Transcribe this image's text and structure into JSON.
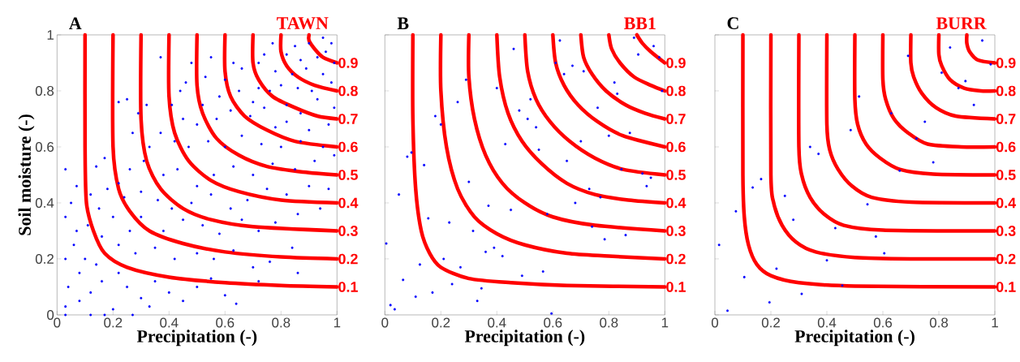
{
  "chart_data": [
    {
      "type": "scatter",
      "title": "A",
      "subtitle": "TAWN",
      "xlabel": "Precipitation (-)",
      "ylabel": "Soil moisture (-)",
      "xlim": [
        0,
        1
      ],
      "ylim": [
        0,
        1
      ],
      "xticks": [
        0,
        0.2,
        0.4,
        0.6,
        0.8,
        1
      ],
      "yticks": [
        0,
        0.2,
        0.4,
        0.6,
        0.8,
        1
      ],
      "series": [
        {
          "color": "#0000ff",
          "marker": "circle",
          "x": [
            0.95,
            0.98,
            0.9,
            0.96,
            0.93,
            0.99,
            0.87,
            0.85,
            0.82,
            0.89,
            0.77,
            0.74,
            0.72,
            0.78,
            0.84,
            0.95,
            0.98,
            0.91,
            0.86,
            0.8,
            0.76,
            0.72,
            0.7,
            0.74,
            0.82,
            0.87,
            0.93,
            0.99,
            0.97,
            0.9,
            0.82,
            0.78,
            0.69,
            0.66,
            0.63,
            0.6,
            0.65,
            0.58,
            0.55,
            0.53,
            0.48,
            0.46,
            0.44,
            0.62,
            0.57,
            0.52,
            0.5,
            0.45,
            0.41,
            0.37,
            0.32,
            0.29,
            0.25,
            0.22,
            0.27,
            0.33,
            0.37,
            0.42,
            0.47,
            0.54,
            0.6,
            0.66,
            0.73,
            0.8,
            0.87,
            0.95,
            0.99,
            0.92,
            0.85,
            0.77,
            0.7,
            0.63,
            0.56,
            0.5,
            0.43,
            0.38,
            0.31,
            0.26,
            0.22,
            0.17,
            0.14,
            0.18,
            0.24,
            0.3,
            0.36,
            0.41,
            0.48,
            0.55,
            0.62,
            0.68,
            0.75,
            0.82,
            0.9,
            0.97,
            0.94,
            0.86,
            0.78,
            0.72,
            0.66,
            0.58,
            0.52,
            0.45,
            0.38,
            0.3,
            0.26,
            0.2,
            0.15,
            0.12,
            0.07,
            0.03,
            0.05,
            0.03,
            0.07,
            0.11,
            0.16,
            0.22,
            0.28,
            0.35,
            0.42,
            0.5,
            0.56,
            0.63,
            0.7,
            0.76,
            0.84,
            0.86,
            0.72,
            0.64,
            0.6,
            0.55,
            0.5,
            0.45,
            0.4,
            0.35,
            0.3,
            0.25,
            0.2,
            0.22,
            0.16,
            0.12,
            0.08,
            0.04,
            0.03,
            0.06,
            0.1,
            0.14,
            0.03,
            0.08,
            0.17,
            0.27,
            0.33,
            0.12,
            0.03
          ],
          "values": [
            0.99,
            0.97,
            0.97,
            0.94,
            0.92,
            0.9,
            0.91,
            0.96,
            0.93,
            0.88,
            0.97,
            0.93,
            0.9,
            0.87,
            0.86,
            0.86,
            0.83,
            0.8,
            0.81,
            0.82,
            0.8,
            0.81,
            0.76,
            0.74,
            0.75,
            0.72,
            0.77,
            0.74,
            0.68,
            0.66,
            0.69,
            0.67,
            0.71,
            0.88,
            0.9,
            0.84,
            0.8,
            0.78,
            0.92,
            0.85,
            0.9,
            0.83,
            0.8,
            0.73,
            0.7,
            0.75,
            0.68,
            0.7,
            0.75,
            0.92,
            0.75,
            0.72,
            0.77,
            0.76,
            0.65,
            0.6,
            0.65,
            0.62,
            0.6,
            0.62,
            0.6,
            0.64,
            0.61,
            0.6,
            0.62,
            0.6,
            0.57,
            0.55,
            0.52,
            0.54,
            0.5,
            0.53,
            0.5,
            0.46,
            0.52,
            0.5,
            0.55,
            0.52,
            0.47,
            0.56,
            0.53,
            0.45,
            0.42,
            0.44,
            0.41,
            0.38,
            0.4,
            0.43,
            0.38,
            0.41,
            0.45,
            0.43,
            0.46,
            0.45,
            0.38,
            0.36,
            0.33,
            0.3,
            0.34,
            0.29,
            0.32,
            0.34,
            0.3,
            0.35,
            0.3,
            0.35,
            0.38,
            0.43,
            0.46,
            0.52,
            0.4,
            0.35,
            0.3,
            0.32,
            0.28,
            0.25,
            0.22,
            0.24,
            0.2,
            0.22,
            0.2,
            0.23,
            0.17,
            0.19,
            0.24,
            0.15,
            0.12,
            0.04,
            0.07,
            0.13,
            0.1,
            0.05,
            0.08,
            0.12,
            0.06,
            0.1,
            0.02,
            0.15,
            0.12,
            0.08,
            0.15,
            0.1,
            0.2,
            0.25,
            0.2,
            0.18,
            0.03,
            0.05,
            0.0,
            0.0,
            0.03,
            0.0,
            0.0
          ]
        },
        {
          "type": "line",
          "name": "0.1",
          "color": "#ff0000",
          "marker": "none",
          "line_style": "solid",
          "x": [
            0.1,
            0.1,
            0.105,
            0.13,
            0.17,
            0.25,
            0.4,
            0.6,
            0.8,
            1
          ],
          "values": [
            1,
            0.6,
            0.4,
            0.3,
            0.22,
            0.17,
            0.135,
            0.115,
            0.105,
            0.1
          ]
        },
        {
          "type": "line",
          "name": "0.2",
          "color": "#ff0000",
          "marker": "none",
          "line_style": "solid",
          "x": [
            0.2,
            0.2,
            0.22,
            0.26,
            0.33,
            0.45,
            0.6,
            0.8,
            1
          ],
          "values": [
            1,
            0.6,
            0.45,
            0.37,
            0.3,
            0.255,
            0.225,
            0.207,
            0.2
          ]
        },
        {
          "type": "line",
          "name": "0.3",
          "color": "#ff0000",
          "marker": "none",
          "line_style": "solid",
          "x": [
            0.3,
            0.3,
            0.32,
            0.37,
            0.45,
            0.55,
            0.7,
            1
          ],
          "values": [
            1,
            0.7,
            0.55,
            0.45,
            0.38,
            0.34,
            0.315,
            0.3
          ]
        },
        {
          "type": "line",
          "name": "0.4",
          "color": "#ff0000",
          "marker": "none",
          "line_style": "solid",
          "x": [
            0.4,
            0.4,
            0.42,
            0.47,
            0.55,
            0.65,
            0.8,
            1
          ],
          "values": [
            1,
            0.78,
            0.65,
            0.55,
            0.48,
            0.44,
            0.41,
            0.4
          ]
        },
        {
          "type": "line",
          "name": "0.5",
          "color": "#ff0000",
          "marker": "none",
          "line_style": "solid",
          "x": [
            0.5,
            0.5,
            0.52,
            0.57,
            0.65,
            0.75,
            0.88,
            1
          ],
          "values": [
            1,
            0.82,
            0.72,
            0.63,
            0.57,
            0.53,
            0.51,
            0.5
          ]
        },
        {
          "type": "line",
          "name": "0.6",
          "color": "#ff0000",
          "marker": "none",
          "line_style": "solid",
          "x": [
            0.6,
            0.6,
            0.62,
            0.67,
            0.75,
            0.85,
            1
          ],
          "values": [
            1,
            0.87,
            0.78,
            0.71,
            0.66,
            0.62,
            0.6
          ]
        },
        {
          "type": "line",
          "name": "0.7",
          "color": "#ff0000",
          "marker": "none",
          "line_style": "solid",
          "x": [
            0.7,
            0.7,
            0.72,
            0.77,
            0.85,
            0.93,
            1
          ],
          "values": [
            1,
            0.9,
            0.84,
            0.78,
            0.74,
            0.71,
            0.7
          ]
        },
        {
          "type": "line",
          "name": "0.8",
          "color": "#ff0000",
          "marker": "none",
          "line_style": "solid",
          "x": [
            0.8,
            0.8,
            0.82,
            0.86,
            0.92,
            1
          ],
          "values": [
            1,
            0.94,
            0.89,
            0.85,
            0.82,
            0.8
          ]
        },
        {
          "type": "line",
          "name": "0.9",
          "color": "#ff0000",
          "marker": "none",
          "line_style": "solid",
          "x": [
            0.9,
            0.9,
            0.92,
            0.95,
            1
          ],
          "values": [
            1,
            0.98,
            0.95,
            0.92,
            0.9
          ]
        }
      ]
    },
    {
      "type": "scatter",
      "title": "B",
      "subtitle": "BB1",
      "xlabel": "Precipitation (-)",
      "xlim": [
        0,
        1
      ],
      "ylim": [
        0,
        1
      ],
      "xticks": [
        0,
        0.2,
        0.4,
        0.6,
        0.8,
        1
      ],
      "yticks": [
        0,
        0.2,
        0.4,
        0.6,
        0.8,
        1
      ],
      "tick_labels": "x",
      "series": [
        {
          "color": "#0000ff",
          "marker": "circle",
          "x": [
            0.89,
            0.96,
            0.625,
            0.46,
            0.905,
            0.98,
            0.61,
            0.67,
            0.71,
            0.64,
            0.29,
            0.4,
            0.82,
            0.99,
            0.83,
            0.52,
            0.26,
            0.76,
            0.48,
            0.18,
            0.51,
            0.2,
            0.54,
            0.875,
            0.8,
            0.7,
            0.43,
            0.55,
            0.095,
            0.08,
            0.65,
            0.14,
            0.845,
            0.92,
            0.95,
            0.3,
            0.935,
            0.73,
            0.05,
            0.77,
            0.68,
            0.37,
            0.45,
            0.58,
            0.155,
            0.23,
            0.74,
            0.315,
            0.86,
            0.785,
            0.005,
            0.39,
            0.36,
            0.42,
            0.21,
            0.125,
            0.27,
            0.565,
            0.49,
            0.065,
            0.24,
            0.345,
            0.17,
            0.11,
            0.33,
            0.02,
            0.035,
            0.595
          ],
          "values": [
            0.99,
            0.96,
            0.98,
            0.95,
            0.93,
            0.92,
            0.9,
            0.89,
            0.87,
            0.86,
            0.84,
            0.81,
            0.83,
            0.8,
            0.79,
            0.77,
            0.76,
            0.74,
            0.73,
            0.71,
            0.7,
            0.68,
            0.67,
            0.65,
            0.64,
            0.62,
            0.61,
            0.59,
            0.58,
            0.565,
            0.55,
            0.535,
            0.52,
            0.505,
            0.49,
            0.475,
            0.46,
            0.45,
            0.43,
            0.42,
            0.4,
            0.39,
            0.375,
            0.36,
            0.345,
            0.33,
            0.315,
            0.3,
            0.285,
            0.27,
            0.255,
            0.24,
            0.225,
            0.21,
            0.2,
            0.18,
            0.17,
            0.155,
            0.14,
            0.125,
            0.11,
            0.095,
            0.08,
            0.065,
            0.05,
            0.035,
            0.02,
            0.005
          ]
        },
        {
          "type": "line",
          "name": "0.1",
          "color": "#ff0000",
          "marker": "none",
          "line_style": "solid",
          "x": [
            0.1,
            0.1,
            0.11,
            0.13,
            0.16,
            0.2,
            0.3,
            0.45,
            0.65,
            1
          ],
          "values": [
            1,
            0.7,
            0.45,
            0.3,
            0.22,
            0.17,
            0.13,
            0.115,
            0.105,
            0.1
          ]
        },
        {
          "type": "line",
          "name": "0.2",
          "color": "#ff0000",
          "marker": "none",
          "line_style": "solid",
          "x": [
            0.2,
            0.2,
            0.22,
            0.26,
            0.32,
            0.4,
            0.5,
            0.65,
            0.8,
            1
          ],
          "values": [
            1,
            0.8,
            0.6,
            0.45,
            0.35,
            0.29,
            0.25,
            0.22,
            0.21,
            0.2
          ]
        },
        {
          "type": "line",
          "name": "0.3",
          "color": "#ff0000",
          "marker": "none",
          "line_style": "solid",
          "x": [
            0.3,
            0.3,
            0.32,
            0.36,
            0.42,
            0.5,
            0.6,
            0.75,
            1
          ],
          "values": [
            1,
            0.85,
            0.7,
            0.57,
            0.47,
            0.4,
            0.35,
            0.32,
            0.3
          ]
        },
        {
          "type": "line",
          "name": "0.4",
          "color": "#ff0000",
          "marker": "none",
          "line_style": "solid",
          "x": [
            0.4,
            0.41,
            0.44,
            0.49,
            0.56,
            0.65,
            0.75,
            0.87,
            1
          ],
          "values": [
            1,
            0.85,
            0.72,
            0.62,
            0.54,
            0.47,
            0.43,
            0.41,
            0.4
          ]
        },
        {
          "type": "line",
          "name": "0.5",
          "color": "#ff0000",
          "marker": "none",
          "line_style": "solid",
          "x": [
            0.5,
            0.51,
            0.54,
            0.59,
            0.66,
            0.75,
            0.85,
            1
          ],
          "values": [
            1,
            0.87,
            0.77,
            0.69,
            0.62,
            0.56,
            0.52,
            0.5
          ]
        },
        {
          "type": "line",
          "name": "0.6",
          "color": "#ff0000",
          "marker": "none",
          "line_style": "solid",
          "x": [
            0.6,
            0.61,
            0.64,
            0.69,
            0.76,
            0.85,
            1
          ],
          "values": [
            1,
            0.9,
            0.82,
            0.75,
            0.69,
            0.64,
            0.6
          ]
        },
        {
          "type": "line",
          "name": "0.7",
          "color": "#ff0000",
          "marker": "none",
          "line_style": "solid",
          "x": [
            0.7,
            0.71,
            0.74,
            0.79,
            0.86,
            0.93,
            1
          ],
          "values": [
            1,
            0.92,
            0.86,
            0.8,
            0.75,
            0.72,
            0.7
          ]
        },
        {
          "type": "line",
          "name": "0.8",
          "color": "#ff0000",
          "marker": "none",
          "line_style": "solid",
          "x": [
            0.8,
            0.81,
            0.84,
            0.89,
            0.95,
            1
          ],
          "values": [
            1,
            0.95,
            0.9,
            0.85,
            0.82,
            0.8
          ]
        },
        {
          "type": "line",
          "name": "0.9",
          "color": "#ff0000",
          "marker": "none",
          "line_style": "solid",
          "x": [
            0.9,
            0.92,
            0.95,
            1
          ],
          "values": [
            1,
            0.97,
            0.94,
            0.9
          ]
        }
      ]
    },
    {
      "type": "scatter",
      "title": "C",
      "subtitle": "BURR",
      "xlabel": "Precipitation (-)",
      "xlim": [
        0,
        1
      ],
      "ylim": [
        0,
        1
      ],
      "xticks": [
        0,
        0.2,
        0.4,
        0.6,
        0.8,
        1
      ],
      "yticks": [
        0,
        0.2,
        0.4,
        0.6,
        0.8,
        1
      ],
      "tick_labels": "x",
      "series": [
        {
          "color": "#0000ff",
          "marker": "circle",
          "x": [
            0.955,
            0.84,
            0.69,
            0.985,
            0.81,
            0.895,
            0.87,
            0.515,
            0.925,
            0.63,
            0.75,
            0.485,
            0.72,
            0.34,
            0.37,
            0.78,
            0.66,
            0.165,
            0.135,
            0.25,
            0.545,
            0.075,
            0.28,
            0.43,
            0.575,
            0.015,
            0.605,
            0.4,
            0.22,
            0.105,
            0.455,
            0.31,
            0.195,
            0.045
          ],
          "values": [
            0.98,
            0.955,
            0.925,
            0.895,
            0.865,
            0.835,
            0.81,
            0.78,
            0.75,
            0.72,
            0.69,
            0.66,
            0.63,
            0.6,
            0.575,
            0.545,
            0.515,
            0.485,
            0.455,
            0.425,
            0.395,
            0.37,
            0.34,
            0.31,
            0.28,
            0.25,
            0.22,
            0.195,
            0.165,
            0.135,
            0.105,
            0.075,
            0.045,
            0.015
          ]
        },
        {
          "type": "line",
          "name": "0.1",
          "color": "#ff0000",
          "marker": "none",
          "line_style": "solid",
          "x": [
            0.1,
            0.1,
            0.105,
            0.12,
            0.15,
            0.2,
            0.3,
            0.5,
            1
          ],
          "values": [
            1,
            0.5,
            0.35,
            0.25,
            0.18,
            0.14,
            0.115,
            0.103,
            0.1
          ]
        },
        {
          "type": "line",
          "name": "0.2",
          "color": "#ff0000",
          "marker": "none",
          "line_style": "solid",
          "x": [
            0.2,
            0.2,
            0.21,
            0.24,
            0.29,
            0.36,
            0.5,
            0.7,
            1
          ],
          "values": [
            1,
            0.5,
            0.4,
            0.32,
            0.26,
            0.225,
            0.205,
            0.2,
            0.2
          ]
        },
        {
          "type": "line",
          "name": "0.3",
          "color": "#ff0000",
          "marker": "none",
          "line_style": "solid",
          "x": [
            0.3,
            0.3,
            0.31,
            0.34,
            0.39,
            0.46,
            0.6,
            1
          ],
          "values": [
            1,
            0.6,
            0.5,
            0.42,
            0.36,
            0.32,
            0.303,
            0.3
          ]
        },
        {
          "type": "line",
          "name": "0.4",
          "color": "#ff0000",
          "marker": "none",
          "line_style": "solid",
          "x": [
            0.4,
            0.4,
            0.41,
            0.44,
            0.49,
            0.56,
            0.7,
            1
          ],
          "values": [
            1,
            0.68,
            0.59,
            0.52,
            0.46,
            0.42,
            0.403,
            0.4
          ]
        },
        {
          "type": "line",
          "name": "0.5",
          "color": "#ff0000",
          "marker": "none",
          "line_style": "solid",
          "x": [
            0.5,
            0.5,
            0.51,
            0.54,
            0.59,
            0.66,
            0.78,
            1
          ],
          "values": [
            1,
            0.77,
            0.68,
            0.61,
            0.56,
            0.52,
            0.503,
            0.5
          ]
        },
        {
          "type": "line",
          "name": "0.6",
          "color": "#ff0000",
          "marker": "none",
          "line_style": "solid",
          "x": [
            0.6,
            0.6,
            0.61,
            0.64,
            0.69,
            0.76,
            0.88,
            1
          ],
          "values": [
            1,
            0.84,
            0.77,
            0.7,
            0.65,
            0.61,
            0.6,
            0.6
          ]
        },
        {
          "type": "line",
          "name": "0.7",
          "color": "#ff0000",
          "marker": "none",
          "line_style": "solid",
          "x": [
            0.7,
            0.7,
            0.71,
            0.74,
            0.79,
            0.86,
            1
          ],
          "values": [
            1,
            0.9,
            0.85,
            0.79,
            0.74,
            0.71,
            0.7
          ]
        },
        {
          "type": "line",
          "name": "0.8",
          "color": "#ff0000",
          "marker": "none",
          "line_style": "solid",
          "x": [
            0.8,
            0.8,
            0.81,
            0.84,
            0.89,
            0.95,
            1
          ],
          "values": [
            1,
            0.93,
            0.89,
            0.84,
            0.81,
            0.8,
            0.8
          ]
        },
        {
          "type": "line",
          "name": "0.9",
          "color": "#ff0000",
          "marker": "none",
          "line_style": "solid",
          "x": [
            0.9,
            0.9,
            0.91,
            0.94,
            1
          ],
          "values": [
            1,
            0.97,
            0.94,
            0.91,
            0.9
          ]
        }
      ]
    }
  ]
}
